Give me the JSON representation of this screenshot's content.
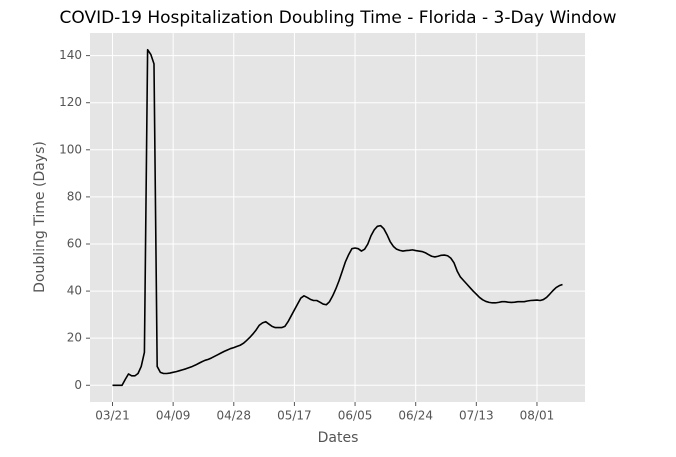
{
  "chart_data": {
    "type": "line",
    "title": "COVID-19 Hospitalization Doubling Time - Florida - 3-Day Window",
    "x_label": "Dates",
    "y_label": "Doubling Time (Days)",
    "x": [
      "03/21",
      "03/22",
      "03/23",
      "03/24",
      "03/25",
      "03/26",
      "03/27",
      "03/28",
      "03/29",
      "03/30",
      "03/31",
      "04/01",
      "04/02",
      "04/03",
      "04/04",
      "04/05",
      "04/06",
      "04/07",
      "04/08",
      "04/09",
      "04/10",
      "04/11",
      "04/12",
      "04/13",
      "04/14",
      "04/15",
      "04/16",
      "04/17",
      "04/18",
      "04/19",
      "04/20",
      "04/21",
      "04/22",
      "04/23",
      "04/24",
      "04/25",
      "04/26",
      "04/27",
      "04/28",
      "04/29",
      "04/30",
      "05/01",
      "05/02",
      "05/03",
      "05/04",
      "05/05",
      "05/06",
      "05/07",
      "05/08",
      "05/09",
      "05/10",
      "05/11",
      "05/12",
      "05/13",
      "05/14",
      "05/15",
      "05/16",
      "05/17",
      "05/18",
      "05/19",
      "05/20",
      "05/21",
      "05/22",
      "05/23",
      "05/24",
      "05/25",
      "05/26",
      "05/27",
      "05/28",
      "05/29",
      "05/30",
      "05/31",
      "06/01",
      "06/02",
      "06/03",
      "06/04",
      "06/05",
      "06/06",
      "06/07",
      "06/08",
      "06/09",
      "06/10",
      "06/11",
      "06/12",
      "06/13",
      "06/14",
      "06/15",
      "06/16",
      "06/17",
      "06/18",
      "06/19",
      "06/20",
      "06/21",
      "06/22",
      "06/23",
      "06/24",
      "06/25",
      "06/26",
      "06/27",
      "06/28",
      "06/29",
      "06/30",
      "07/01",
      "07/02",
      "07/03",
      "07/04",
      "07/05",
      "07/06",
      "07/07",
      "07/08",
      "07/09",
      "07/10",
      "07/11",
      "07/12",
      "07/13",
      "07/14",
      "07/15",
      "07/16",
      "07/17",
      "07/18",
      "07/19",
      "07/20",
      "07/21",
      "07/22",
      "07/23",
      "07/24",
      "07/25",
      "07/26",
      "07/27",
      "07/28",
      "07/29",
      "07/30",
      "07/31",
      "08/01",
      "08/02",
      "08/03",
      "08/04",
      "08/05",
      "08/06",
      "08/07",
      "08/08",
      "08/09"
    ],
    "values": [
      0,
      0,
      0,
      0,
      2.5,
      4.8,
      4,
      4,
      5,
      8,
      14,
      142.5,
      140.5,
      136.5,
      8,
      5.5,
      5,
      5,
      5.2,
      5.5,
      5.8,
      6.2,
      6.6,
      7,
      7.5,
      8,
      8.6,
      9.3,
      10,
      10.6,
      11,
      11.6,
      12.3,
      13,
      13.7,
      14.4,
      15,
      15.6,
      16,
      16.5,
      17,
      17.8,
      19,
      20.3,
      21.8,
      23.5,
      25.5,
      26.5,
      27,
      26,
      25,
      24.5,
      24.5,
      24.5,
      25,
      27,
      29.5,
      32,
      34.5,
      37,
      38,
      37.3,
      36.5,
      36,
      36,
      35.3,
      34.5,
      34.2,
      35.5,
      38,
      41,
      44.5,
      48.5,
      52.5,
      55.5,
      58,
      58.3,
      58,
      57,
      57.8,
      60,
      63.5,
      66,
      67.5,
      67.8,
      66.5,
      64,
      61,
      59,
      57.8,
      57.3,
      57,
      57.2,
      57.3,
      57.5,
      57.2,
      57,
      56.8,
      56.3,
      55.5,
      54.8,
      54.5,
      54.8,
      55.2,
      55.3,
      55,
      54,
      52,
      48.5,
      46,
      44.5,
      43,
      41.5,
      40,
      38.7,
      37.3,
      36.3,
      35.6,
      35.2,
      35,
      35,
      35.2,
      35.5,
      35.5,
      35.3,
      35.2,
      35.3,
      35.5,
      35.5,
      35.5,
      35.8,
      36,
      36.1,
      36.2,
      36,
      36.4,
      37.3,
      38.7,
      40.2,
      41.5,
      42.3,
      42.8
    ],
    "color": "#000000",
    "ylim": [
      -7.1,
      149.6
    ],
    "yticks": [
      0,
      20,
      40,
      60,
      80,
      100,
      120,
      140
    ],
    "xticks": [
      "03/21",
      "04/09",
      "04/28",
      "05/17",
      "06/05",
      "06/24",
      "07/13",
      "08/01"
    ],
    "grid": true
  }
}
